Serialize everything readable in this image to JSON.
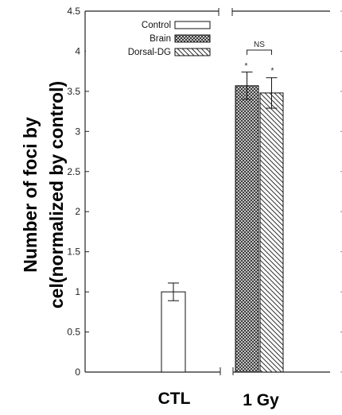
{
  "chart_data": {
    "type": "bar",
    "title": "",
    "xlabel": "",
    "ylabel": [
      "Number of foci by",
      "cel(normalized by control)"
    ],
    "ylim": [
      0,
      4.5
    ],
    "yticks": [
      "0",
      "0.5",
      "1",
      "1.5",
      "2",
      "2.5",
      "3",
      "3.5",
      "4",
      "4.5"
    ],
    "grid": false,
    "legend_position": "top-left",
    "categories": [
      "CTL",
      "1 Gy"
    ],
    "series": [
      {
        "name": "Control",
        "pattern": "none",
        "values": [
          1.0,
          null
        ],
        "errors": [
          0.11,
          null
        ]
      },
      {
        "name": "Brain",
        "pattern": "crosshatch",
        "values": [
          null,
          3.57
        ],
        "errors": [
          null,
          0.17
        ]
      },
      {
        "name": "Dorsal-DG",
        "pattern": "diagonal",
        "values": [
          null,
          3.48
        ],
        "errors": [
          null,
          0.19
        ]
      }
    ],
    "annotations": {
      "significance_bracket": "NS",
      "stars": [
        "*",
        "*"
      ]
    },
    "colors": {
      "axis": "#222222",
      "bar_edge": "#111111",
      "bar_fill": "#ffffff"
    }
  }
}
